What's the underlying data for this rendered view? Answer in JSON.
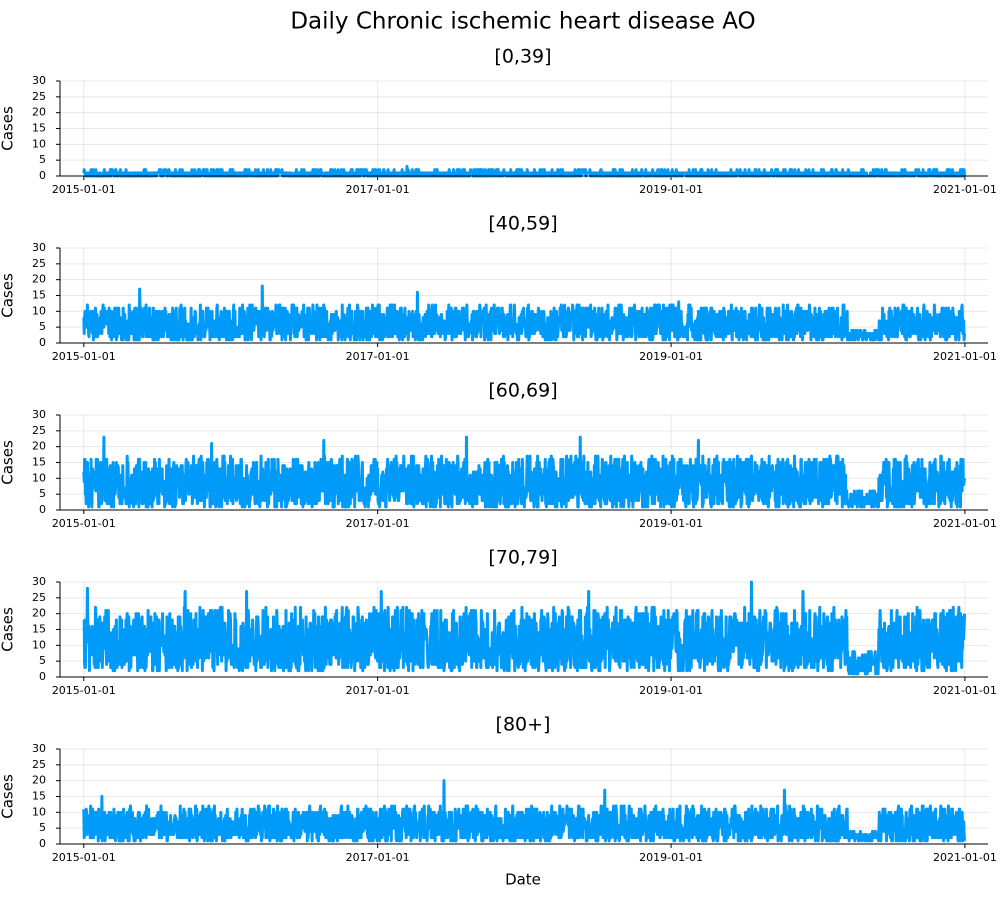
{
  "title": "Daily Chronic ischemic heart disease AO",
  "chart_data": [
    {
      "type": "line",
      "title": "[0,39]",
      "ylabel": "Cases",
      "xlabel": "",
      "x_range": [
        "2015-01-01",
        "2021-01-01"
      ],
      "ylim": [
        0,
        30
      ],
      "yticks": [
        0,
        5,
        10,
        15,
        20,
        25,
        30
      ],
      "xticks": [
        "2015-01-01",
        "2017-01-01",
        "2019-01-01",
        "2021-01-01"
      ],
      "data_start": "2015-01-01",
      "data_end": "2020-12-31",
      "series_color": "#009af9",
      "grid": true,
      "legend": "none",
      "typical_range": [
        0,
        2
      ],
      "peaks": [
        {
          "date": "2017-03-15",
          "value": 3
        }
      ]
    },
    {
      "type": "line",
      "title": "[40,59]",
      "ylabel": "Cases",
      "xlabel": "",
      "x_range": [
        "2015-01-01",
        "2021-01-01"
      ],
      "ylim": [
        0,
        30
      ],
      "yticks": [
        0,
        5,
        10,
        15,
        20,
        25,
        30
      ],
      "xticks": [
        "2015-01-01",
        "2017-01-01",
        "2019-01-01",
        "2021-01-01"
      ],
      "data_start": "2015-01-01",
      "data_end": "2020-12-31",
      "series_color": "#009af9",
      "grid": true,
      "legend": "none",
      "typical_range": [
        1,
        12
      ],
      "low_period": [
        "2020-03-15",
        "2020-05-31"
      ],
      "peaks": [
        {
          "date": "2015-05-20",
          "value": 17
        },
        {
          "date": "2016-03-20",
          "value": 18
        },
        {
          "date": "2017-04-10",
          "value": 16
        },
        {
          "date": "2019-01-20",
          "value": 13
        }
      ]
    },
    {
      "type": "line",
      "title": "[60,69]",
      "ylabel": "Cases",
      "xlabel": "",
      "x_range": [
        "2015-01-01",
        "2021-01-01"
      ],
      "ylim": [
        0,
        30
      ],
      "yticks": [
        0,
        5,
        10,
        15,
        20,
        25,
        30
      ],
      "xticks": [
        "2015-01-01",
        "2017-01-01",
        "2019-01-01",
        "2021-01-01"
      ],
      "data_start": "2015-01-01",
      "data_end": "2020-12-31",
      "series_color": "#009af9",
      "grid": true,
      "legend": "none",
      "typical_range": [
        1,
        17
      ],
      "low_period": [
        "2020-03-15",
        "2020-05-31"
      ],
      "peaks": [
        {
          "date": "2015-02-20",
          "value": 23
        },
        {
          "date": "2015-11-15",
          "value": 21
        },
        {
          "date": "2016-08-20",
          "value": 22
        },
        {
          "date": "2017-08-10",
          "value": 23
        },
        {
          "date": "2018-05-20",
          "value": 23
        },
        {
          "date": "2019-03-10",
          "value": 22
        }
      ]
    },
    {
      "type": "line",
      "title": "[70,79]",
      "ylabel": "Cases",
      "xlabel": "",
      "x_range": [
        "2015-01-01",
        "2021-01-01"
      ],
      "ylim": [
        0,
        30
      ],
      "yticks": [
        0,
        5,
        10,
        15,
        20,
        25,
        30
      ],
      "xticks": [
        "2015-01-01",
        "2017-01-01",
        "2019-01-01",
        "2021-01-01"
      ],
      "data_start": "2015-01-01",
      "data_end": "2020-12-31",
      "series_color": "#009af9",
      "grid": true,
      "legend": "none",
      "typical_range": [
        2,
        22
      ],
      "low_period": [
        "2020-03-15",
        "2020-05-31"
      ],
      "peaks": [
        {
          "date": "2015-01-10",
          "value": 28
        },
        {
          "date": "2015-09-10",
          "value": 27
        },
        {
          "date": "2016-02-10",
          "value": 27
        },
        {
          "date": "2017-01-10",
          "value": 27
        },
        {
          "date": "2018-06-10",
          "value": 27
        },
        {
          "date": "2019-07-20",
          "value": 30
        },
        {
          "date": "2019-11-25",
          "value": 27
        }
      ]
    },
    {
      "type": "line",
      "title": "[80+]",
      "ylabel": "Cases",
      "xlabel": "Date",
      "x_range": [
        "2015-01-01",
        "2021-01-01"
      ],
      "ylim": [
        0,
        30
      ],
      "yticks": [
        0,
        5,
        10,
        15,
        20,
        25,
        30
      ],
      "xticks": [
        "2015-01-01",
        "2017-01-01",
        "2019-01-01",
        "2021-01-01"
      ],
      "data_start": "2015-01-01",
      "data_end": "2020-12-31",
      "series_color": "#009af9",
      "grid": true,
      "legend": "none",
      "typical_range": [
        1,
        12
      ],
      "low_period": [
        "2020-03-15",
        "2020-05-31"
      ],
      "peaks": [
        {
          "date": "2015-02-15",
          "value": 15
        },
        {
          "date": "2017-06-15",
          "value": 20
        },
        {
          "date": "2018-07-20",
          "value": 17
        },
        {
          "date": "2019-10-10",
          "value": 17
        }
      ]
    }
  ]
}
